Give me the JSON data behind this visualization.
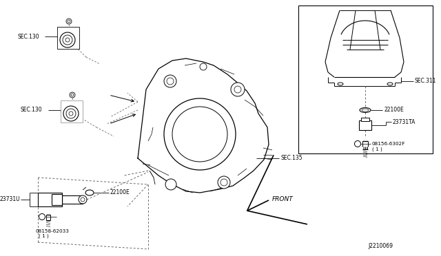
{
  "bg_color": "#ffffff",
  "lc": "#000000",
  "dc": "#666666",
  "fig_width": 6.4,
  "fig_height": 3.72,
  "dpi": 100,
  "labels": {
    "SEC130_top": "SEC.130",
    "SEC130_mid": "SEC.130",
    "SEC135": "SEC.135",
    "SEC311": "SEC.311",
    "part_22100E_left": "22100E",
    "part_23731U": "23731U",
    "bolt_left": "B08158-62033\n( 1 )",
    "part_22100E_right": "22100E",
    "part_23731TA": "23731TA",
    "bolt_right": "B08156-6302F\n( 1 )",
    "front_label": "FRONT",
    "diagram_id": "J2210069"
  }
}
